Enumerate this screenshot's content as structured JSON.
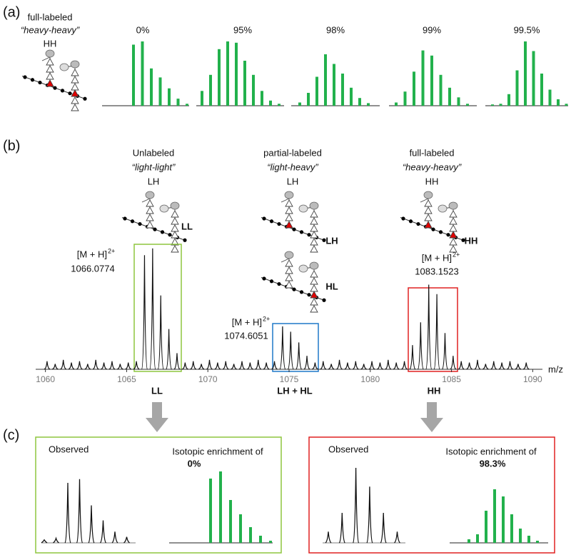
{
  "panel_labels": [
    "(a)",
    "(b)",
    "(c)"
  ],
  "panel_a": {
    "label_lines": [
      "full-labeled",
      "“heavy-heavy”",
      "HH"
    ]
  },
  "panel_b": {
    "groups": [
      {
        "lines": [
          "Unlabeled",
          "“light-light”",
          "LH"
        ],
        "icon_labels": [
          "LL"
        ],
        "annotation": {
          "ion": "[M + H]",
          "charge": "2+",
          "mz": 1066.0774
        },
        "below": "LL"
      },
      {
        "lines": [
          "partial-labeled",
          "“light-heavy”",
          "LH"
        ],
        "icon_labels": [
          "LH",
          "HL"
        ],
        "annotation": {
          "ion": "[M + H]",
          "charge": "2+",
          "mz": 1074.6051
        },
        "below": "LH + HL"
      },
      {
        "lines": [
          "full-labeled",
          "“heavy-heavy”",
          "HH"
        ],
        "icon_labels": [
          "HH"
        ],
        "annotation": {
          "ion": "[M + H]",
          "charge": "2+",
          "mz": 1083.1523
        },
        "below": "HH"
      }
    ]
  },
  "panel_c": [
    {
      "observed": "Observed",
      "caption": "Isotopic enrichment of",
      "enrichment": "0%"
    },
    {
      "observed": "Observed",
      "caption": "Isotopic enrichment of",
      "enrichment": "98.3%"
    }
  ],
  "chart_data": [
    {
      "type": "bar",
      "title": "0%",
      "values": [
        95,
        100,
        58,
        44,
        27,
        11,
        3
      ],
      "ylim": [
        0,
        100
      ],
      "color": "#22b14c"
    },
    {
      "type": "bar",
      "title": "95%",
      "values": [
        23,
        48,
        88,
        100,
        98,
        70,
        48,
        23,
        8,
        3
      ],
      "ylim": [
        0,
        100
      ],
      "color": "#22b14c"
    },
    {
      "type": "bar",
      "title": "98%",
      "values": [
        5,
        20,
        45,
        80,
        65,
        50,
        28,
        12,
        4
      ],
      "ylim": [
        0,
        100
      ],
      "color": "#22b14c"
    },
    {
      "type": "bar",
      "title": "99%",
      "values": [
        5,
        22,
        53,
        86,
        78,
        48,
        28,
        13,
        3
      ],
      "ylim": [
        0,
        100
      ],
      "color": "#22b14c"
    },
    {
      "type": "bar",
      "title": "99.5%",
      "values": [
        2,
        3,
        18,
        55,
        100,
        85,
        50,
        25,
        10,
        3
      ],
      "ylim": [
        0,
        100
      ],
      "color": "#22b14c"
    },
    {
      "type": "spectrum",
      "x_label": "m/z",
      "color": "#111",
      "x": [
        1060.1,
        1060.6,
        1061.1,
        1061.6,
        1062.1,
        1062.6,
        1063.1,
        1063.6,
        1064.1,
        1064.6,
        1065.1,
        1065.6,
        1066.1,
        1066.6,
        1067.1,
        1067.6,
        1068.1,
        1068.6,
        1069.1,
        1069.6,
        1070.1,
        1070.6,
        1071.1,
        1071.6,
        1072.1,
        1072.6,
        1073.1,
        1073.6,
        1074.1,
        1074.6,
        1075.1,
        1075.6,
        1076.1,
        1076.6,
        1077.1,
        1077.6,
        1078.1,
        1078.6,
        1079.1,
        1079.6,
        1080.1,
        1080.6,
        1081.1,
        1081.6,
        1082.1,
        1082.6,
        1083.1,
        1083.6,
        1084.1,
        1084.6,
        1085.1,
        1085.6,
        1086.1,
        1086.6,
        1087.1,
        1087.6,
        1088.1,
        1088.6,
        1089.1,
        1089.6
      ],
      "values": [
        6,
        4,
        7,
        5,
        6,
        4,
        7,
        5,
        6,
        4,
        5,
        6,
        85,
        90,
        55,
        30,
        12,
        5,
        6,
        4,
        7,
        5,
        6,
        4,
        6,
        5,
        7,
        5,
        6,
        32,
        28,
        20,
        10,
        5,
        6,
        4,
        7,
        5,
        6,
        4,
        6,
        5,
        7,
        5,
        6,
        18,
        35,
        63,
        56,
        27,
        10,
        6,
        5,
        7,
        4,
        6,
        5,
        6,
        4,
        5
      ],
      "xlim": [
        1059.4,
        1090.6
      ],
      "xticks": [
        1060,
        1065,
        1070,
        1075,
        1080,
        1085,
        1090
      ],
      "ylim": [
        0,
        100
      ]
    },
    {
      "type": "profile",
      "values": [
        4,
        6,
        80,
        85,
        50,
        30,
        15,
        8
      ],
      "ylim": [
        0,
        100
      ],
      "color": "#111"
    },
    {
      "type": "bar",
      "values": [
        90,
        100,
        60,
        40,
        22,
        10,
        3
      ],
      "ylim": [
        0,
        100
      ],
      "color": "#22b14c"
    },
    {
      "type": "profile",
      "values": [
        15,
        40,
        100,
        75,
        40,
        15
      ],
      "ylim": [
        0,
        100
      ],
      "color": "#111"
    },
    {
      "type": "bar",
      "values": [
        5,
        12,
        45,
        75,
        65,
        40,
        20,
        10,
        3
      ],
      "ylim": [
        0,
        100
      ],
      "color": "#22b14c"
    }
  ]
}
